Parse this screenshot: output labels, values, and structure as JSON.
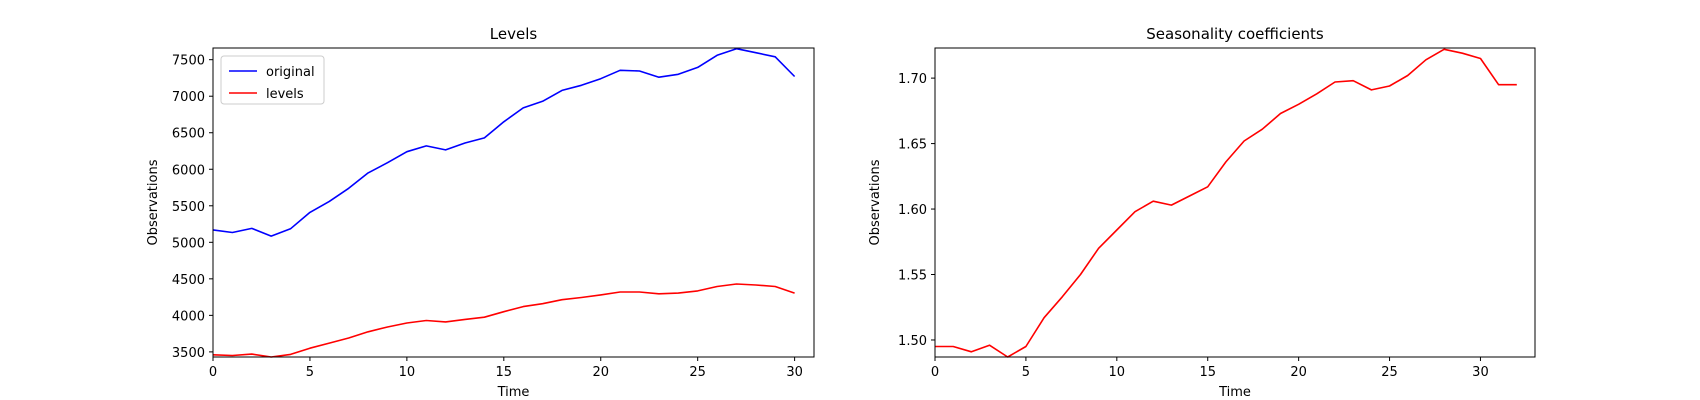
{
  "chart_data": [
    {
      "type": "line",
      "title": "Levels",
      "xlabel": "Time",
      "ylabel": "Observations",
      "xlim": [
        0,
        31
      ],
      "ylim": [
        3430,
        7660
      ],
      "xticks": [
        0,
        5,
        10,
        15,
        20,
        25,
        30
      ],
      "yticks": [
        3500,
        4000,
        4500,
        5000,
        5500,
        6000,
        6500,
        7000,
        7500
      ],
      "grid": false,
      "legend": "upper-left",
      "series": [
        {
          "name": "original",
          "color": "#0000ff",
          "x": [
            0,
            1,
            2,
            3,
            4,
            5,
            6,
            7,
            8,
            9,
            10,
            11,
            12,
            13,
            14,
            15,
            16,
            17,
            18,
            19,
            20,
            21,
            22,
            23,
            24,
            25,
            26,
            27,
            28,
            29,
            30
          ],
          "y": [
            5170,
            5135,
            5190,
            5085,
            5185,
            5410,
            5560,
            5740,
            5950,
            6090,
            6240,
            6320,
            6265,
            6360,
            6430,
            6650,
            6840,
            6930,
            7080,
            7150,
            7240,
            7355,
            7345,
            7260,
            7300,
            7395,
            7560,
            7650,
            7595,
            7540,
            7270
          ]
        },
        {
          "name": "levels",
          "color": "#ff0000",
          "x": [
            0,
            1,
            2,
            3,
            4,
            5,
            6,
            7,
            8,
            9,
            10,
            11,
            12,
            13,
            14,
            15,
            16,
            17,
            18,
            19,
            20,
            21,
            22,
            23,
            24,
            25,
            26,
            27,
            28,
            29,
            30
          ],
          "y": [
            3460,
            3450,
            3470,
            3430,
            3465,
            3550,
            3620,
            3690,
            3775,
            3840,
            3895,
            3930,
            3910,
            3945,
            3975,
            4050,
            4120,
            4160,
            4215,
            4245,
            4280,
            4320,
            4320,
            4295,
            4305,
            4335,
            4395,
            4430,
            4415,
            4395,
            4305
          ]
        }
      ]
    },
    {
      "type": "line",
      "title": "Seasonality coefficients",
      "xlabel": "Time",
      "ylabel": "Observations",
      "xlim": [
        0,
        33
      ],
      "ylim": [
        1.487,
        1.723
      ],
      "xticks": [
        0,
        5,
        10,
        15,
        20,
        25,
        30
      ],
      "yticks": [
        1.5,
        1.55,
        1.6,
        1.65,
        1.7
      ],
      "ytick_labels": [
        "1.50",
        "1.55",
        "1.60",
        "1.65",
        "1.70"
      ],
      "grid": false,
      "series": [
        {
          "color": "#ff0000",
          "x": [
            0,
            1,
            2,
            3,
            4,
            5,
            6,
            7,
            8,
            9,
            10,
            11,
            12,
            13,
            14,
            15,
            16,
            17,
            18,
            19,
            20,
            21,
            22,
            23,
            24,
            25,
            26,
            27,
            28,
            29,
            30,
            31,
            32
          ],
          "y": [
            1.495,
            1.495,
            1.491,
            1.496,
            1.487,
            1.495,
            1.517,
            1.533,
            1.55,
            1.57,
            1.584,
            1.598,
            1.606,
            1.603,
            1.61,
            1.617,
            1.636,
            1.652,
            1.661,
            1.673,
            1.68,
            1.688,
            1.697,
            1.698,
            1.691,
            1.694,
            1.702,
            1.714,
            1.722,
            1.719,
            1.715,
            1.695,
            1.695
          ]
        }
      ]
    }
  ]
}
